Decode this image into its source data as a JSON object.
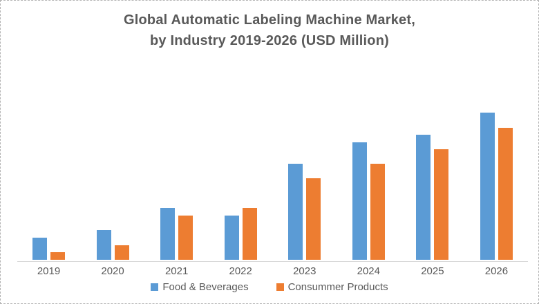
{
  "chart_data": {
    "type": "bar",
    "title": "Global Automatic Labeling Machine Market, by Industry 2019-2026 (USD Million)",
    "title_lines": [
      "Global Automatic Labeling Machine Market,",
      "by Industry 2019-2026 (USD Million)"
    ],
    "categories": [
      "2019",
      "2020",
      "2021",
      "2022",
      "2023",
      "2024",
      "2025",
      "2026"
    ],
    "series": [
      {
        "name": "Food & Beverages",
        "color": "#5B9BD5",
        "values": [
          32,
          43,
          75,
          64,
          139,
          170,
          181,
          213
        ]
      },
      {
        "name": "Consummer Products",
        "color": "#ED7D31",
        "values": [
          11,
          21,
          64,
          75,
          118,
          139,
          160,
          191
        ]
      }
    ],
    "xlabel": "",
    "ylabel": "",
    "y_axis_visible": false,
    "value_unit": "relative bar height, px (no y-axis scale or gridlines shown in chart)",
    "ylim": [
      0,
      290
    ],
    "grid": false,
    "legend_position": "bottom",
    "axis_color": "#d9d9d9",
    "text_color": "#595959",
    "title_color": "#595959",
    "background_color": "#ffffff"
  }
}
